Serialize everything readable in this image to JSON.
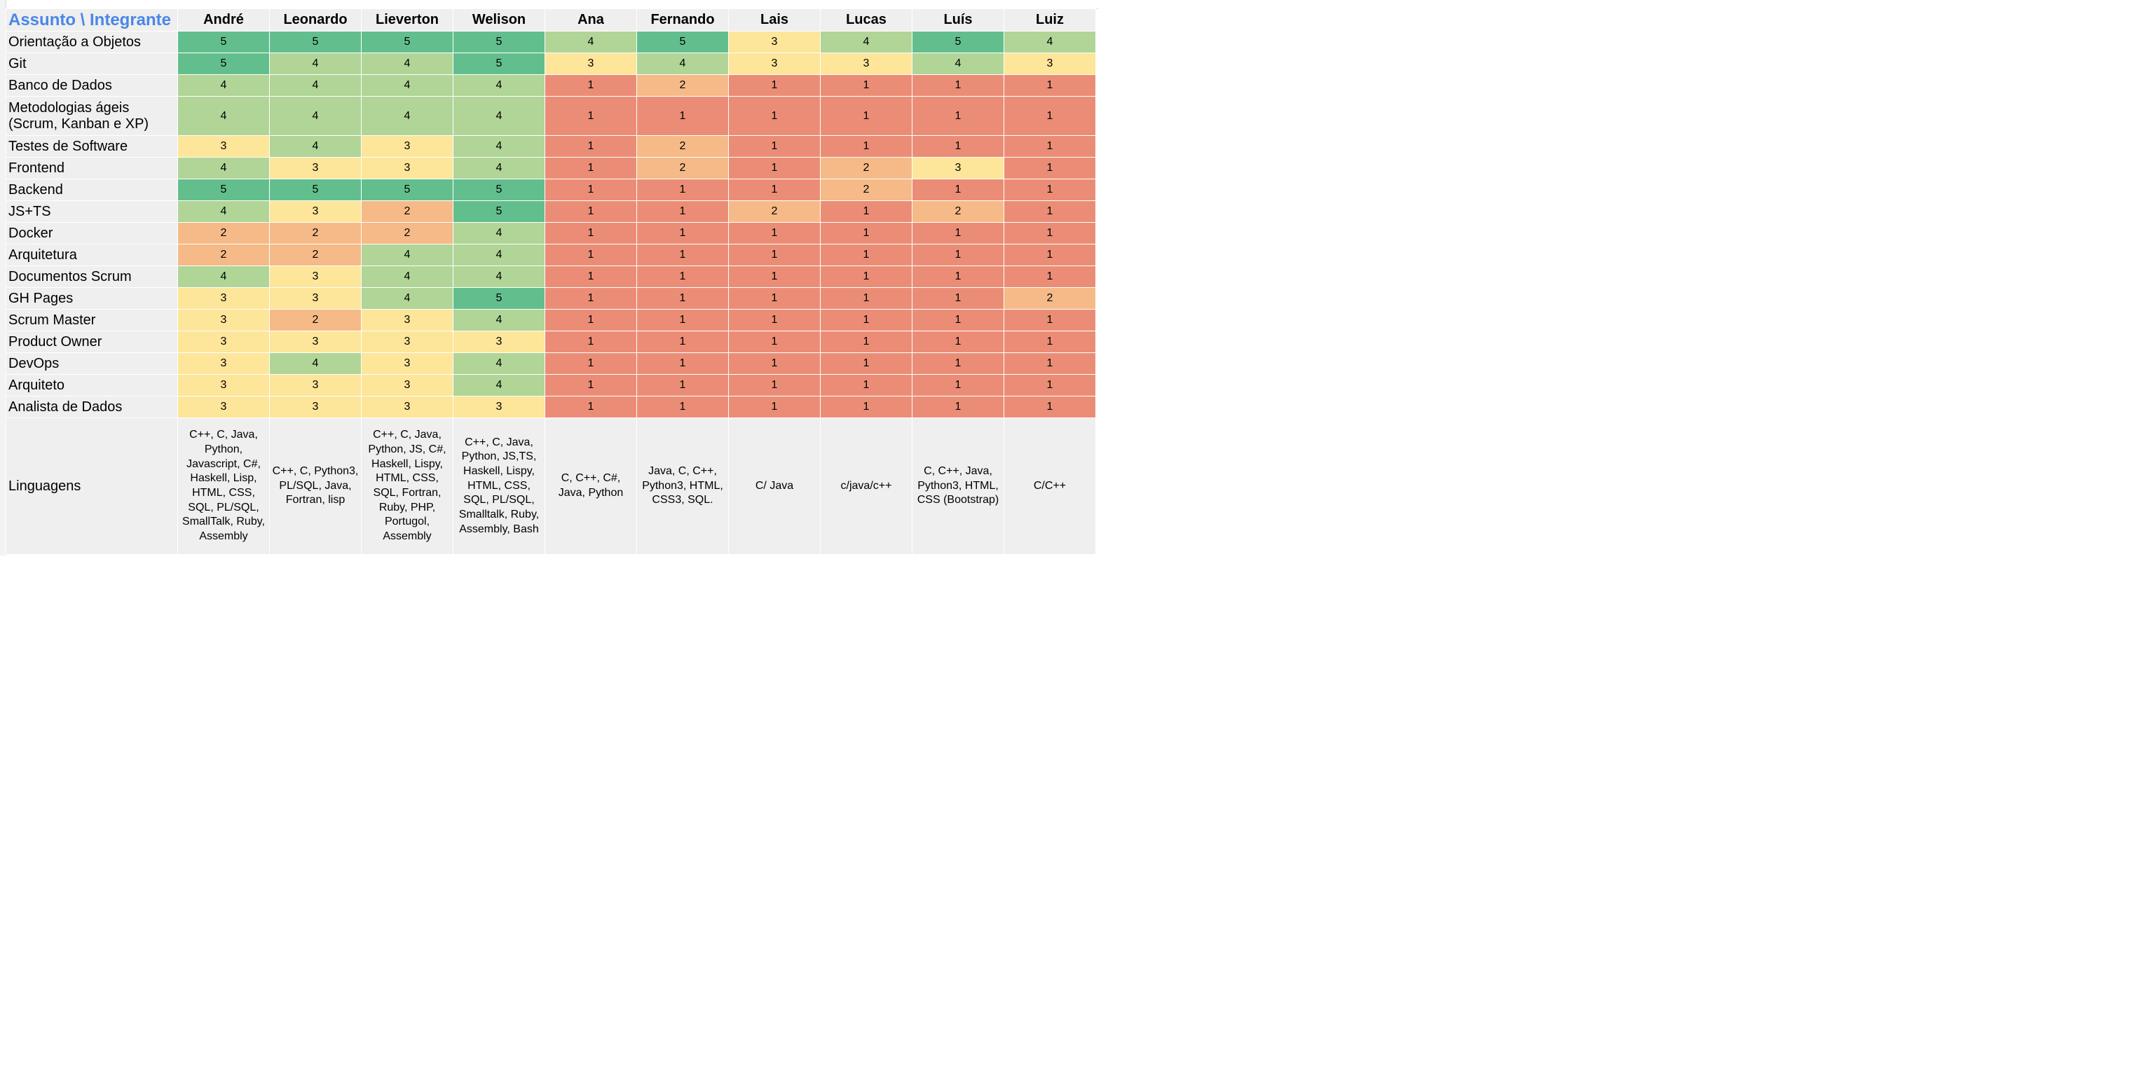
{
  "corner_label": "Assunto \\ Integrante",
  "members": [
    "André",
    "Leonardo",
    "Lieverton",
    "Welison",
    "Ana",
    "Fernando",
    "Lais",
    "Lucas",
    "Luís",
    "Luiz"
  ],
  "score_colors": {
    "5": "#63be8e",
    "4": "#b0d597",
    "3": "#fde59a",
    "2": "#f5ba87",
    "1": "#eb8d76"
  },
  "subjects": [
    {
      "name": "Orientação a Objetos",
      "scores": [
        "5",
        "5",
        "5",
        "5",
        "4",
        "5",
        "3",
        "4",
        "5",
        "4"
      ]
    },
    {
      "name": "Git",
      "scores": [
        "5",
        "4",
        "4",
        "5",
        "3",
        "4",
        "3",
        "3",
        "4",
        "3"
      ]
    },
    {
      "name": "Banco de Dados",
      "scores": [
        "4",
        "4",
        "4",
        "4",
        "1",
        "2",
        "1",
        "1",
        "1",
        "1"
      ]
    },
    {
      "name": "Metodologias ágeis\n(Scrum, Kanban e XP)",
      "scores": [
        "4",
        "4",
        "4",
        "4",
        "1",
        "1",
        "1",
        "1",
        "1",
        "1"
      ]
    },
    {
      "name": "Testes de Software",
      "scores": [
        "3",
        "4",
        "3",
        "4",
        "1",
        "2",
        "1",
        "1",
        "1",
        "1"
      ]
    },
    {
      "name": "Frontend",
      "scores": [
        "4",
        "3",
        "3",
        "4",
        "1",
        "2",
        "1",
        "2",
        "3",
        "1"
      ]
    },
    {
      "name": "Backend",
      "scores": [
        "5",
        "5",
        "5",
        "5",
        "1",
        "1",
        "1",
        "2",
        "1",
        "1"
      ]
    },
    {
      "name": "JS+TS",
      "scores": [
        "4",
        "3",
        "2",
        "5",
        "1",
        "1",
        "2",
        "1",
        "2",
        "1"
      ]
    },
    {
      "name": "Docker",
      "scores": [
        "2",
        "2",
        "2",
        "4",
        "1",
        "1",
        "1",
        "1",
        "1",
        "1"
      ]
    },
    {
      "name": "Arquitetura",
      "scores": [
        "2",
        "2",
        "4",
        "4",
        "1",
        "1",
        "1",
        "1",
        "1",
        "1"
      ]
    },
    {
      "name": "Documentos Scrum",
      "scores": [
        "4",
        "3",
        "4",
        "4",
        "1",
        "1",
        "1",
        "1",
        "1",
        "1"
      ]
    },
    {
      "name": "GH Pages",
      "scores": [
        "3",
        "3",
        "4",
        "5",
        "1",
        "1",
        "1",
        "1",
        "1",
        "2"
      ]
    },
    {
      "name": "Scrum Master",
      "scores": [
        "3",
        "2",
        "3",
        "4",
        "1",
        "1",
        "1",
        "1",
        "1",
        "1"
      ]
    },
    {
      "name": "Product Owner",
      "scores": [
        "3",
        "3",
        "3",
        "3",
        "1",
        "1",
        "1",
        "1",
        "1",
        "1"
      ]
    },
    {
      "name": "DevOps",
      "scores": [
        "3",
        "4",
        "3",
        "4",
        "1",
        "1",
        "1",
        "1",
        "1",
        "1"
      ]
    },
    {
      "name": "Arquiteto",
      "scores": [
        "3",
        "3",
        "3",
        "4",
        "1",
        "1",
        "1",
        "1",
        "1",
        "1"
      ]
    },
    {
      "name": "Analista de Dados",
      "scores": [
        "3",
        "3",
        "3",
        "3",
        "1",
        "1",
        "1",
        "1",
        "1",
        "1"
      ]
    }
  ],
  "languages": {
    "label": "Linguagens",
    "values": [
      "C++, C, Java, Python, Javascript, C#, Haskell, Lisp, HTML, CSS, SQL, PL/SQL, SmallTalk, Ruby, Assembly",
      "C++, C, Python3, PL/SQL, Java, Fortran, lisp",
      "C++, C, Java, Python, JS, C#, Haskell, Lispy, HTML, CSS, SQL, Fortran, Ruby, PHP, Portugol, Assembly",
      "C++, C, Java, Python, JS,TS, Haskell, Lispy, HTML, CSS, SQL, PL/SQL, Smalltalk, Ruby, Assembly, Bash",
      "C, C++, C#, Java, Python",
      "Java, C, C++, Python3, HTML, CSS3, SQL.",
      "C/ Java",
      "c/java/c++",
      "C, C++, Java, Python3, HTML, CSS (Bootstrap)",
      "C/C++"
    ]
  }
}
